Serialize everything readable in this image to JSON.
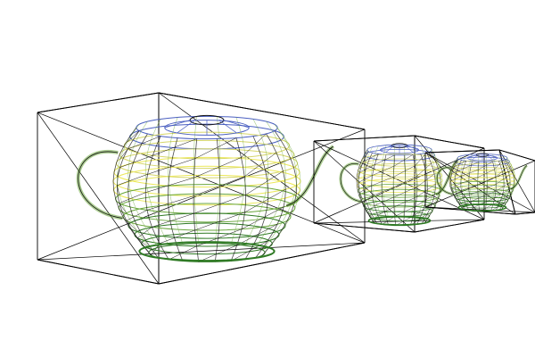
{
  "scene": {
    "background_color": "#ffffff",
    "bounding_box_color": "#000000",
    "wire_colors": {
      "top": "#4a5fc1",
      "upper": "#d6d66a",
      "middle": "#ece85a",
      "lower": "#6aa63b",
      "bottom": "#2f7a24",
      "outline": "#111111"
    },
    "objects": [
      {
        "name": "teapot-large",
        "icon": "teapot-wireframe-icon",
        "bounding_box": true
      },
      {
        "name": "teapot-medium",
        "icon": "teapot-wireframe-icon",
        "bounding_box": true
      },
      {
        "name": "teapot-small",
        "icon": "teapot-wireframe-icon",
        "bounding_box": true
      }
    ]
  }
}
